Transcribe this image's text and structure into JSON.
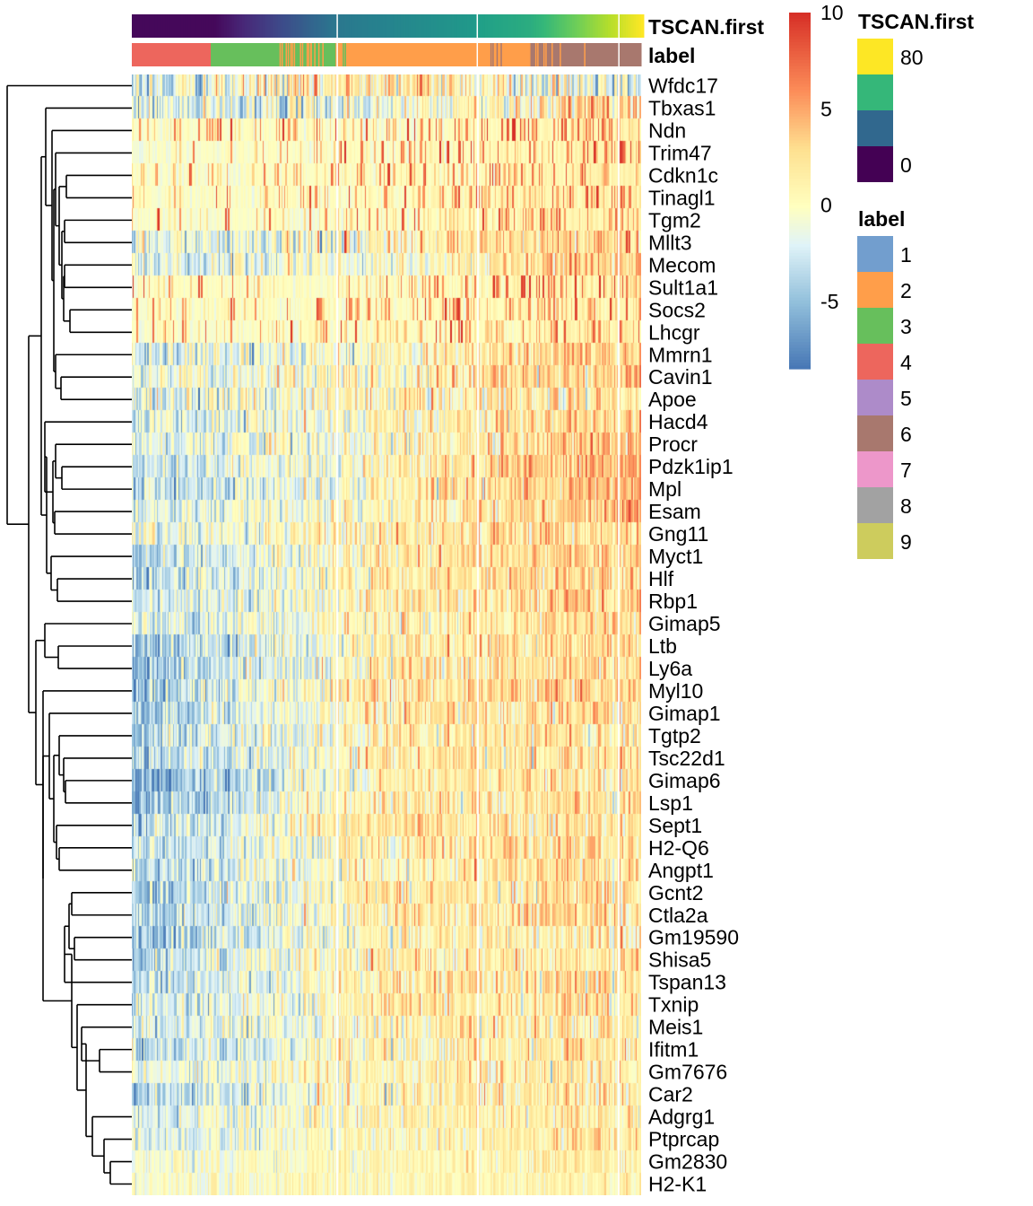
{
  "chart_data": {
    "type": "heatmap",
    "title": "",
    "row_labels": [
      "Wfdc17",
      "Tbxas1",
      "Ndn",
      "Trim47",
      "Cdkn1c",
      "Tinagl1",
      "Tgm2",
      "Mllt3",
      "Mecom",
      "Sult1a1",
      "Socs2",
      "Lhcgr",
      "Mmrn1",
      "Cavin1",
      "Apoe",
      "Hacd4",
      "Procr",
      "Pdzk1ip1",
      "Mpl",
      "Esam",
      "Gng11",
      "Myct1",
      "Hlf",
      "Rbp1",
      "Gimap5",
      "Ltb",
      "Ly6a",
      "Myl10",
      "Gimap1",
      "Tgtp2",
      "Tsc22d1",
      "Gimap6",
      "Lsp1",
      "Sept1",
      "H2-Q6",
      "Angpt1",
      "Gcnt2",
      "Ctla2a",
      "Gm19590",
      "Shisa5",
      "Tspan13",
      "Txnip",
      "Meis1",
      "Ifitm1",
      "Gm7676",
      "Car2",
      "Adgrg1",
      "Ptprcap",
      "Gm2830",
      "H2-K1"
    ],
    "row_profiles": [
      {
        "gene": "Wfdc17",
        "left": -3.0,
        "mid": 3.0,
        "right": -2.5,
        "noise": 3.0
      },
      {
        "gene": "Tbxas1",
        "left": -2.5,
        "mid": -1.0,
        "right": 3.5,
        "noise": 2.5
      },
      {
        "gene": "Ndn",
        "left": -0.8,
        "mid": -0.5,
        "right": 5.0,
        "noise": 2.5,
        "sparse": true
      },
      {
        "gene": "Trim47",
        "left": -1.5,
        "mid": -1.0,
        "right": 5.5,
        "noise": 2.5,
        "sparse": true
      },
      {
        "gene": "Cdkn1c",
        "left": -0.5,
        "mid": -0.5,
        "right": 5.0,
        "noise": 2.0,
        "sparse": true
      },
      {
        "gene": "Tinagl1",
        "left": -0.7,
        "mid": -0.6,
        "right": 5.0,
        "noise": 2.0,
        "sparse": true
      },
      {
        "gene": "Tgm2",
        "left": -1.2,
        "mid": -0.8,
        "right": 5.5,
        "noise": 2.0,
        "sparse": true
      },
      {
        "gene": "Mllt3",
        "left": -2.0,
        "mid": 0.5,
        "right": 4.0,
        "noise": 2.5
      },
      {
        "gene": "Mecom",
        "left": -2.0,
        "mid": -0.5,
        "right": 4.5,
        "noise": 2.0
      },
      {
        "gene": "Sult1a1",
        "left": -0.5,
        "mid": -0.3,
        "right": 4.0,
        "noise": 2.0,
        "sparse": true
      },
      {
        "gene": "Socs2",
        "left": -0.8,
        "mid": -0.5,
        "right": 3.5,
        "noise": 2.0,
        "sparse": true
      },
      {
        "gene": "Lhcgr",
        "left": -0.8,
        "mid": -0.6,
        "right": 4.0,
        "noise": 2.0,
        "sparse": true
      },
      {
        "gene": "Mmrn1",
        "left": -2.0,
        "mid": 0.0,
        "right": 4.5,
        "noise": 2.0
      },
      {
        "gene": "Cavin1",
        "left": -1.5,
        "mid": 0.5,
        "right": 4.0,
        "noise": 2.2
      },
      {
        "gene": "Apoe",
        "left": -1.5,
        "mid": 1.0,
        "right": 2.5,
        "noise": 2.5
      },
      {
        "gene": "Hacd4",
        "left": -2.5,
        "mid": 0.5,
        "right": 4.0,
        "noise": 2.0
      },
      {
        "gene": "Procr",
        "left": -1.5,
        "mid": 0.0,
        "right": 4.5,
        "noise": 2.0
      },
      {
        "gene": "Pdzk1ip1",
        "left": -3.5,
        "mid": 1.0,
        "right": 5.0,
        "noise": 2.0
      },
      {
        "gene": "Mpl",
        "left": -4.0,
        "mid": 1.0,
        "right": 5.0,
        "noise": 2.0
      },
      {
        "gene": "Esam",
        "left": -2.0,
        "mid": 0.5,
        "right": 5.0,
        "noise": 2.0
      },
      {
        "gene": "Gng11",
        "left": -2.0,
        "mid": 1.5,
        "right": 3.5,
        "noise": 2.0
      },
      {
        "gene": "Myct1",
        "left": -4.0,
        "mid": 1.5,
        "right": 3.5,
        "noise": 2.0
      },
      {
        "gene": "Hlf",
        "left": -4.0,
        "mid": 1.5,
        "right": 3.5,
        "noise": 2.0
      },
      {
        "gene": "Rbp1",
        "left": -3.0,
        "mid": 1.0,
        "right": 3.5,
        "noise": 2.0
      },
      {
        "gene": "Gimap5",
        "left": -2.5,
        "mid": 1.0,
        "right": 3.0,
        "noise": 2.0
      },
      {
        "gene": "Ltb",
        "left": -5.0,
        "mid": 1.0,
        "right": 3.0,
        "noise": 2.0
      },
      {
        "gene": "Ly6a",
        "left": -5.5,
        "mid": 1.5,
        "right": 3.0,
        "noise": 2.0
      },
      {
        "gene": "Myl10",
        "left": -4.5,
        "mid": 2.0,
        "right": 3.0,
        "noise": 2.0
      },
      {
        "gene": "Gimap1",
        "left": -4.5,
        "mid": 1.5,
        "right": 2.5,
        "noise": 2.0
      },
      {
        "gene": "Tgtp2",
        "left": -4.0,
        "mid": 1.5,
        "right": 2.5,
        "noise": 2.0
      },
      {
        "gene": "Tsc22d1",
        "left": -4.5,
        "mid": 1.5,
        "right": 2.5,
        "noise": 2.0
      },
      {
        "gene": "Gimap6",
        "left": -6.5,
        "mid": 1.5,
        "right": 2.5,
        "noise": 2.0
      },
      {
        "gene": "Lsp1",
        "left": -5.5,
        "mid": 1.5,
        "right": 2.5,
        "noise": 2.0
      },
      {
        "gene": "Sept1",
        "left": -3.5,
        "mid": 2.0,
        "right": 2.5,
        "noise": 2.0
      },
      {
        "gene": "H2-Q6",
        "left": -4.0,
        "mid": 1.5,
        "right": 2.5,
        "noise": 2.0
      },
      {
        "gene": "Angpt1",
        "left": -4.0,
        "mid": 1.0,
        "right": 2.5,
        "noise": 2.0
      },
      {
        "gene": "Gcnt2",
        "left": -5.0,
        "mid": 1.5,
        "right": 2.5,
        "noise": 2.0
      },
      {
        "gene": "Ctla2a",
        "left": -4.0,
        "mid": 1.5,
        "right": 2.5,
        "noise": 2.0
      },
      {
        "gene": "Gm19590",
        "left": -4.5,
        "mid": 1.0,
        "right": 2.0,
        "noise": 2.0
      },
      {
        "gene": "Shisa5",
        "left": -4.0,
        "mid": 1.5,
        "right": 2.0,
        "noise": 2.0
      },
      {
        "gene": "Tspan13",
        "left": -3.5,
        "mid": 1.5,
        "right": 2.0,
        "noise": 2.0
      },
      {
        "gene": "Txnip",
        "left": -3.0,
        "mid": 1.5,
        "right": 2.5,
        "noise": 2.0
      },
      {
        "gene": "Meis1",
        "left": -3.0,
        "mid": 1.0,
        "right": 2.5,
        "noise": 2.0
      },
      {
        "gene": "Ifitm1",
        "left": -4.0,
        "mid": 1.0,
        "right": 2.5,
        "noise": 2.0
      },
      {
        "gene": "Gm7676",
        "left": -1.5,
        "mid": 1.0,
        "right": 2.0,
        "noise": 1.8
      },
      {
        "gene": "Car2",
        "left": -4.0,
        "mid": 1.0,
        "right": 2.5,
        "noise": 2.0
      },
      {
        "gene": "Adgrg1",
        "left": -2.5,
        "mid": 1.0,
        "right": 2.0,
        "noise": 1.8
      },
      {
        "gene": "Ptprcap",
        "left": -2.5,
        "mid": 1.0,
        "right": 1.8,
        "noise": 1.5
      },
      {
        "gene": "Gm2830",
        "left": -1.0,
        "mid": 0.7,
        "right": 1.5,
        "noise": 1.2
      },
      {
        "gene": "H2-K1",
        "left": -0.5,
        "mid": 0.6,
        "right": 1.3,
        "noise": 1.0
      }
    ],
    "column_slices": 4,
    "value_range": [
      -8.5,
      10
    ],
    "color_scale": {
      "name": "",
      "ticks": [
        10,
        5,
        0,
        -5
      ],
      "stops": [
        {
          "value": -8.5,
          "color": "#4575b4"
        },
        {
          "value": -5,
          "color": "#91bfdb"
        },
        {
          "value": -2,
          "color": "#e0f3f8"
        },
        {
          "value": 0,
          "color": "#ffffbf"
        },
        {
          "value": 3,
          "color": "#fee090"
        },
        {
          "value": 6,
          "color": "#fc8d59"
        },
        {
          "value": 10,
          "color": "#d73027"
        }
      ]
    },
    "annotations": [
      {
        "name": "TSCAN.first",
        "type": "continuous",
        "range": [
          0,
          90
        ],
        "legend_ticks": [
          "80",
          "0"
        ],
        "legend_colors": [
          "#fde725",
          "#35b779",
          "#31688e",
          "#440154"
        ]
      },
      {
        "name": "label",
        "type": "categorical",
        "levels": [
          "1",
          "2",
          "3",
          "4",
          "5",
          "6",
          "7",
          "8",
          "9"
        ],
        "colors": [
          "#729ece",
          "#ff9e4a",
          "#67bf5c",
          "#ed665d",
          "#ad8bc9",
          "#a8786e",
          "#ed97ca",
          "#a2a2a2",
          "#cdcc5d"
        ],
        "segments": [
          {
            "label": "4",
            "from": 0.0,
            "to": 0.155
          },
          {
            "label": "3",
            "from": 0.155,
            "to": 0.4
          },
          {
            "label": "2",
            "from": 0.4,
            "to": 0.78
          },
          {
            "label": "6",
            "from": 0.78,
            "to": 1.0
          }
        ]
      }
    ],
    "legends": {
      "tscan_title": "TSCAN.first",
      "tscan_tick_high": "80",
      "tscan_tick_low": "0",
      "label_title": "label",
      "scale_ticks": [
        "10",
        "5",
        "0",
        "-5"
      ]
    },
    "dendrogram_merges": [
      [
        10,
        11
      ],
      [
        4,
        5
      ],
      [
        8,
        9
      ],
      [
        6,
        7
      ],
      [
        3,
        4
      ],
      [
        13,
        14
      ],
      [
        18,
        19
      ],
      [
        22,
        23
      ],
      [
        25,
        26
      ],
      [
        28,
        29
      ],
      [
        31,
        32
      ],
      [
        35,
        36
      ],
      [
        37,
        38
      ],
      [
        39,
        40
      ],
      [
        41,
        42
      ],
      [
        44,
        45
      ],
      [
        47,
        48
      ],
      [
        48,
        49
      ]
    ],
    "xlabel": "",
    "ylabel": ""
  }
}
